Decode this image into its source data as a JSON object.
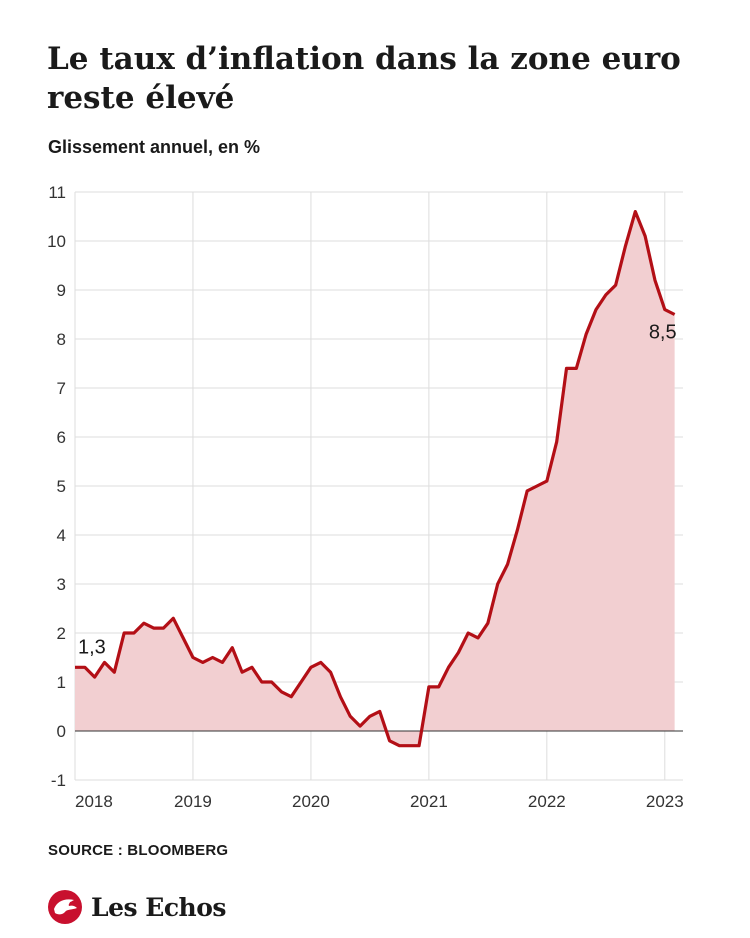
{
  "header": {
    "title": "Le taux d’inflation dans la zone euro reste élevé",
    "subtitle": "Glissement annuel, en %"
  },
  "footer": {
    "source": "SOURCE : BLOOMBERG",
    "brand": "Les Echos"
  },
  "colors": {
    "line": "#b30f16",
    "fill": "#f2cfd1",
    "grid": "#dddddd",
    "zero": "#333333"
  },
  "chart_data": {
    "type": "area",
    "x_start": "2018-01",
    "frequency": "monthly",
    "x_tick_labels": [
      "2018",
      "2019",
      "2020",
      "2021",
      "2022",
      "2023"
    ],
    "y_ticks": [
      -1,
      0,
      1,
      2,
      3,
      4,
      5,
      6,
      7,
      8,
      9,
      10,
      11
    ],
    "ylim": [
      -1,
      11
    ],
    "grid": true,
    "series": [
      {
        "values": [
          1.3,
          1.3,
          1.1,
          1.4,
          1.2,
          2.0,
          2.0,
          2.2,
          2.1,
          2.1,
          2.3,
          1.9,
          1.5,
          1.4,
          1.5,
          1.4,
          1.7,
          1.2,
          1.3,
          1.0,
          1.0,
          0.8,
          0.7,
          1.0,
          1.3,
          1.4,
          1.2,
          0.7,
          0.3,
          0.1,
          0.3,
          0.4,
          -0.2,
          -0.3,
          -0.3,
          -0.3,
          0.9,
          0.9,
          1.3,
          1.6,
          2.0,
          1.9,
          2.2,
          3.0,
          3.4,
          4.1,
          4.9,
          5.0,
          5.1,
          5.9,
          7.4,
          7.4,
          8.1,
          8.6,
          8.9,
          9.1,
          9.9,
          10.6,
          10.1,
          9.2,
          8.6,
          8.5
        ]
      }
    ],
    "annotations": [
      {
        "text": "1,3",
        "index": 0
      },
      {
        "text": "8,5",
        "index": 61
      }
    ]
  }
}
